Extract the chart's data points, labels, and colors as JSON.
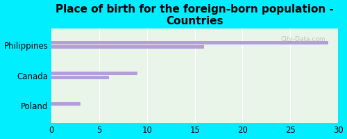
{
  "title": "Place of birth for the foreign-born population -\nCountries",
  "categories": [
    "Philippines",
    "Canada",
    "Poland"
  ],
  "bar_data": [
    [
      29.0,
      16.0
    ],
    [
      9.0,
      6.0
    ],
    [
      3.0,
      null
    ]
  ],
  "bar_color": "#b39ddb",
  "xlim": [
    0,
    30
  ],
  "xticks": [
    0,
    5,
    10,
    15,
    20,
    25,
    30
  ],
  "background_color": "#00eeff",
  "plot_bg_color": "#eaf5ea",
  "title_fontsize": 11,
  "label_fontsize": 8.5,
  "tick_fontsize": 8.5,
  "bar_height": 0.12,
  "bar_gap": 0.14,
  "watermark": "City-Data.com"
}
